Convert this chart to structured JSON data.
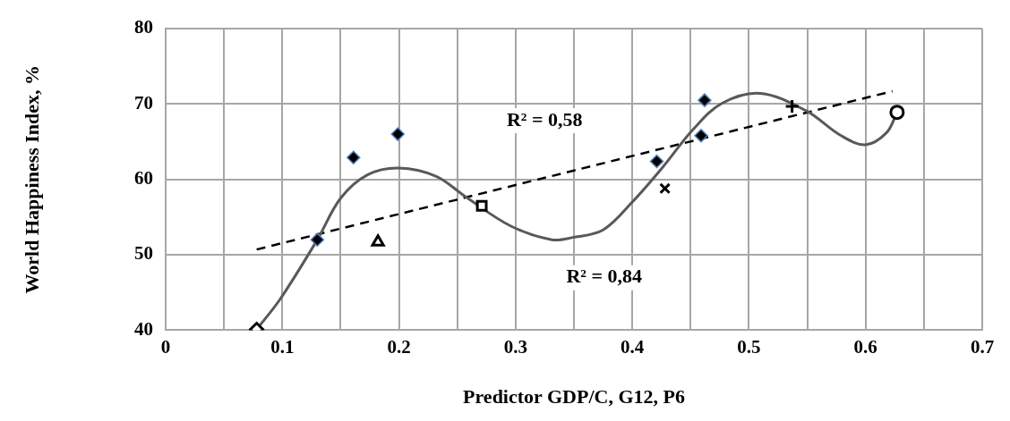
{
  "chart_data": {
    "type": "scatter",
    "xlabel": "Predictor GDP/C, G12, P6",
    "ylabel": "World Happiness Index, %",
    "xlim": [
      0,
      0.7
    ],
    "ylim": [
      40,
      80
    ],
    "xticks": [
      0,
      {
        "value": 0.05,
        "label": null
      },
      0.1,
      {
        "value": 0.15,
        "label": null
      },
      0.2,
      {
        "value": 0.25,
        "label": null
      },
      0.3,
      {
        "value": 0.35,
        "label": null
      },
      0.4,
      {
        "value": 0.45,
        "label": null
      },
      0.5,
      {
        "value": 0.55,
        "label": null
      },
      0.6,
      {
        "value": 0.65,
        "label": null
      },
      0.7
    ],
    "yticks": [
      40,
      50,
      60,
      70,
      80
    ],
    "grid": true,
    "series": [
      {
        "type": "line",
        "color": "#595959",
        "marker": "none",
        "line_style": "solid",
        "x": [
          0.078,
          0.0985,
          0.13,
          0.15,
          0.173,
          0.2,
          0.232,
          0.257,
          0.296,
          0.331,
          0.349,
          0.375,
          0.4,
          0.426,
          0.452,
          0.477,
          0.51,
          0.549,
          0.579,
          0.6,
          0.618,
          0.627
        ],
        "values": [
          40.1,
          44.2,
          52.0,
          57.5,
          60.6,
          61.5,
          60.4,
          57.7,
          53.8,
          52.0,
          52.3,
          53.3,
          57.0,
          61.6,
          66.6,
          70.1,
          71.4,
          69.1,
          65.8,
          64.6,
          66.2,
          68.9
        ]
      },
      {
        "type": "line",
        "color": "#000000",
        "marker": "none",
        "line_style": "dashed",
        "x": [
          0.078,
          0.623
        ],
        "values": [
          50.7,
          71.7
        ]
      },
      {
        "type": "scatter",
        "color": "#000000",
        "marker": "diamond",
        "x": [
          0.13,
          0.161,
          0.199,
          0.421,
          0.459,
          0.462
        ],
        "values": [
          52.0,
          62.9,
          66.0,
          62.4,
          65.8,
          70.5
        ]
      },
      {
        "type": "scatter",
        "color": "#000000",
        "marker": "diamond",
        "x": [
          0.078
        ],
        "values": [
          40.1
        ]
      },
      {
        "type": "scatter",
        "color": "#000000",
        "marker": "triangle",
        "x": [
          0.182
        ],
        "values": [
          51.7
        ]
      },
      {
        "type": "scatter",
        "color": "#000000",
        "marker": "square",
        "x": [
          0.271
        ],
        "values": [
          56.5
        ]
      },
      {
        "type": "scatter",
        "color": "#000000",
        "marker": "x",
        "x": [
          0.428
        ],
        "values": [
          58.8
        ]
      },
      {
        "type": "scatter",
        "color": "#000000",
        "marker": "cross",
        "x": [
          0.537
        ],
        "values": [
          69.7
        ]
      },
      {
        "type": "scatter",
        "color": "#000000",
        "marker": "circle",
        "x": [
          0.627
        ],
        "values": [
          68.9
        ]
      }
    ],
    "annotations": [
      "R² = 0,58",
      "R² = 0,84"
    ]
  }
}
